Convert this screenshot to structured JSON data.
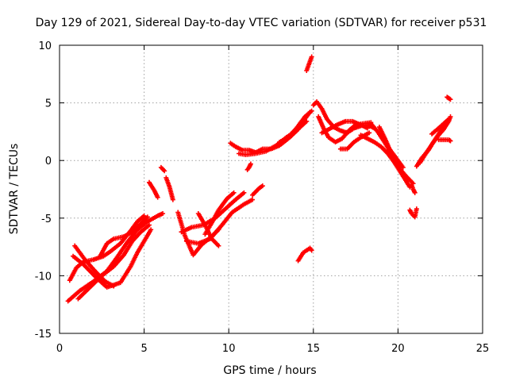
{
  "chart_data": {
    "type": "scatter",
    "title": "Day 129 of 2021, Sidereal Day-to-day VTEC variation (SDTVAR) for receiver p531",
    "xlabel": "GPS time / hours",
    "ylabel": "SDTVAR / TECUs",
    "xlim": [
      0,
      25
    ],
    "ylim": [
      -15,
      10
    ],
    "xticks": [
      "0",
      "5",
      "10",
      "15",
      "20",
      "25"
    ],
    "yticks": [
      "-15",
      "-10",
      "-5",
      "0",
      "5",
      "10"
    ],
    "grid": true,
    "marker": "plus",
    "series": [
      {
        "color": "#ff0000",
        "tracks": [
          [
            [
              0.5,
              -12.2
            ],
            [
              1.2,
              -11.3
            ],
            [
              2.0,
              -10.5
            ],
            [
              2.8,
              -9.6
            ],
            [
              3.4,
              -8.4
            ],
            [
              4.0,
              -7.1
            ],
            [
              4.6,
              -6.0
            ],
            [
              5.2,
              -5.3
            ],
            [
              5.8,
              -4.8
            ],
            [
              6.1,
              -4.6
            ]
          ],
          [
            [
              0.6,
              -10.4
            ],
            [
              1.0,
              -9.3
            ],
            [
              1.4,
              -8.8
            ],
            [
              2.0,
              -8.6
            ],
            [
              2.6,
              -8.3
            ],
            [
              3.0,
              -7.9
            ],
            [
              3.6,
              -7.2
            ],
            [
              4.2,
              -6.1
            ],
            [
              4.6,
              -5.3
            ],
            [
              5.0,
              -4.8
            ]
          ],
          [
            [
              0.8,
              -8.3
            ],
            [
              1.4,
              -9.0
            ],
            [
              2.2,
              -10.2
            ],
            [
              2.8,
              -11.0
            ],
            [
              3.6,
              -10.6
            ],
            [
              4.2,
              -9.2
            ],
            [
              4.6,
              -8.0
            ],
            [
              5.0,
              -7.0
            ],
            [
              5.4,
              -6.0
            ]
          ],
          [
            [
              0.9,
              -7.4
            ],
            [
              1.5,
              -8.6
            ],
            [
              2.1,
              -9.6
            ],
            [
              2.7,
              -10.5
            ],
            [
              3.2,
              -10.9
            ]
          ],
          [
            [
              2.4,
              -8.3
            ],
            [
              2.8,
              -7.2
            ],
            [
              3.2,
              -6.8
            ],
            [
              3.8,
              -6.6
            ],
            [
              4.3,
              -6.2
            ],
            [
              4.8,
              -5.5
            ],
            [
              5.2,
              -4.9
            ]
          ],
          [
            [
              1.1,
              -12.0
            ],
            [
              1.8,
              -11.0
            ],
            [
              2.5,
              -10.0
            ],
            [
              3.2,
              -9.2
            ],
            [
              3.8,
              -8.2
            ],
            [
              4.3,
              -7.0
            ],
            [
              4.8,
              -6.2
            ],
            [
              5.3,
              -5.6
            ]
          ],
          [
            [
              6.0,
              -0.6
            ],
            [
              6.2,
              -0.9
            ]
          ],
          [
            [
              5.3,
              -1.9
            ],
            [
              5.6,
              -2.6
            ],
            [
              5.8,
              -3.2
            ]
          ],
          [
            [
              6.3,
              -1.5
            ],
            [
              6.5,
              -2.3
            ],
            [
              6.7,
              -3.4
            ]
          ],
          [
            [
              7.0,
              -4.5
            ],
            [
              7.4,
              -6.5
            ],
            [
              7.9,
              -8.2
            ],
            [
              8.4,
              -7.3
            ],
            [
              8.9,
              -6.7
            ],
            [
              9.4,
              -6.0
            ]
          ],
          [
            [
              7.2,
              -6.2
            ],
            [
              7.8,
              -5.8
            ],
            [
              8.5,
              -5.6
            ],
            [
              9.2,
              -5.0
            ],
            [
              9.8,
              -4.2
            ],
            [
              10.4,
              -3.4
            ],
            [
              10.9,
              -2.8
            ]
          ],
          [
            [
              7.5,
              -7.0
            ],
            [
              8.2,
              -7.2
            ],
            [
              8.9,
              -6.8
            ],
            [
              9.6,
              -5.6
            ],
            [
              10.2,
              -4.5
            ],
            [
              10.9,
              -3.8
            ],
            [
              11.4,
              -3.4
            ]
          ],
          [
            [
              8.2,
              -4.6
            ],
            [
              8.6,
              -5.6
            ],
            [
              9.0,
              -6.8
            ],
            [
              9.4,
              -7.4
            ]
          ],
          [
            [
              8.6,
              -6.4
            ],
            [
              9.0,
              -5.4
            ],
            [
              9.4,
              -4.3
            ],
            [
              9.9,
              -3.3
            ],
            [
              10.3,
              -2.8
            ]
          ],
          [
            [
              11.4,
              -3.0
            ],
            [
              11.8,
              -2.4
            ],
            [
              12.0,
              -2.2
            ]
          ],
          [
            [
              10.1,
              1.5
            ],
            [
              10.4,
              1.2
            ],
            [
              10.8,
              0.9
            ],
            [
              11.2,
              0.9
            ],
            [
              11.6,
              0.7
            ],
            [
              12.0,
              1.0
            ],
            [
              12.5,
              1.0
            ],
            [
              13.0,
              1.3
            ],
            [
              13.6,
              2.0
            ],
            [
              14.1,
              2.7
            ],
            [
              14.5,
              3.6
            ],
            [
              14.8,
              4.2
            ]
          ],
          [
            [
              10.6,
              0.6
            ],
            [
              11.0,
              0.5
            ],
            [
              11.6,
              0.6
            ],
            [
              12.2,
              0.8
            ],
            [
              12.8,
              1.3
            ],
            [
              13.4,
              2.0
            ],
            [
              14.0,
              2.6
            ],
            [
              14.6,
              3.4
            ]
          ],
          [
            [
              13.0,
              1.6
            ],
            [
              13.5,
              2.0
            ],
            [
              14.0,
              2.8
            ],
            [
              14.5,
              3.8
            ],
            [
              14.9,
              4.3
            ]
          ],
          [
            [
              11.3,
              -0.3
            ],
            [
              11.2,
              -0.6
            ],
            [
              11.1,
              -0.8
            ]
          ],
          [
            [
              14.6,
              7.8
            ],
            [
              14.8,
              8.6
            ],
            [
              14.9,
              9.0
            ]
          ],
          [
            [
              14.1,
              -8.7
            ],
            [
              14.4,
              -8.0
            ],
            [
              14.8,
              -7.6
            ],
            [
              14.9,
              -7.8
            ]
          ],
          [
            [
              15.0,
              4.8
            ],
            [
              15.2,
              5.1
            ],
            [
              15.5,
              4.5
            ],
            [
              15.8,
              3.6
            ],
            [
              16.2,
              2.9
            ],
            [
              16.6,
              2.6
            ],
            [
              17.0,
              2.4
            ],
            [
              17.4,
              2.8
            ],
            [
              17.8,
              3.0
            ],
            [
              18.2,
              3.1
            ],
            [
              18.6,
              2.8
            ]
          ],
          [
            [
              15.3,
              3.8
            ],
            [
              15.6,
              2.8
            ],
            [
              15.9,
              2.0
            ],
            [
              16.3,
              1.6
            ],
            [
              16.7,
              1.9
            ],
            [
              17.1,
              2.6
            ],
            [
              17.5,
              3.1
            ],
            [
              17.9,
              3.2
            ],
            [
              18.4,
              3.3
            ]
          ],
          [
            [
              15.5,
              2.4
            ],
            [
              15.9,
              2.7
            ],
            [
              16.4,
              3.1
            ],
            [
              16.9,
              3.4
            ],
            [
              17.3,
              3.4
            ],
            [
              17.8,
              3.1
            ],
            [
              18.2,
              2.8
            ]
          ],
          [
            [
              16.6,
              1.0
            ],
            [
              17.0,
              1.0
            ],
            [
              17.4,
              1.6
            ],
            [
              17.8,
              2.0
            ],
            [
              18.3,
              2.4
            ]
          ],
          [
            [
              17.8,
              2.2
            ],
            [
              18.2,
              1.9
            ],
            [
              18.6,
              1.6
            ],
            [
              19.0,
              1.2
            ],
            [
              19.4,
              0.6
            ],
            [
              19.8,
              -0.2
            ],
            [
              20.1,
              -0.9
            ],
            [
              20.4,
              -1.6
            ],
            [
              20.7,
              -2.3
            ]
          ],
          [
            [
              18.4,
              3.2
            ],
            [
              18.8,
              2.5
            ],
            [
              19.2,
              1.6
            ],
            [
              19.6,
              0.6
            ],
            [
              19.9,
              -0.2
            ],
            [
              20.2,
              -1.0
            ]
          ],
          [
            [
              18.9,
              2.9
            ],
            [
              19.2,
              2.0
            ],
            [
              19.5,
              1.0
            ],
            [
              19.9,
              0.2
            ],
            [
              20.3,
              -0.6
            ]
          ],
          [
            [
              19.4,
              0.9
            ],
            [
              19.8,
              0.0
            ],
            [
              20.1,
              -0.7
            ],
            [
              20.5,
              -1.4
            ],
            [
              20.9,
              -2.0
            ]
          ],
          [
            [
              20.8,
              -2.1
            ],
            [
              20.9,
              -2.5
            ],
            [
              21.0,
              -2.8
            ]
          ],
          [
            [
              20.7,
              -4.3
            ],
            [
              20.8,
              -4.6
            ],
            [
              21.0,
              -4.9
            ],
            [
              21.1,
              -4.2
            ]
          ],
          [
            [
              21.1,
              -0.5
            ],
            [
              21.4,
              0.2
            ],
            [
              21.8,
              0.9
            ],
            [
              22.1,
              1.6
            ],
            [
              22.4,
              2.3
            ],
            [
              22.7,
              2.9
            ],
            [
              22.9,
              3.3
            ]
          ],
          [
            [
              21.3,
              -0.2
            ],
            [
              21.6,
              0.5
            ],
            [
              22.0,
              1.4
            ],
            [
              22.4,
              2.2
            ],
            [
              22.7,
              2.7
            ],
            [
              23.0,
              3.4
            ],
            [
              23.1,
              3.8
            ]
          ],
          [
            [
              22.0,
              2.3
            ],
            [
              22.4,
              2.8
            ],
            [
              22.7,
              3.2
            ],
            [
              23.0,
              3.6
            ]
          ],
          [
            [
              22.4,
              1.8
            ],
            [
              22.7,
              1.8
            ],
            [
              23.0,
              1.8
            ],
            [
              23.1,
              1.7
            ]
          ],
          [
            [
              22.9,
              5.5
            ],
            [
              23.0,
              5.4
            ],
            [
              23.1,
              5.3
            ]
          ]
        ]
      }
    ]
  }
}
